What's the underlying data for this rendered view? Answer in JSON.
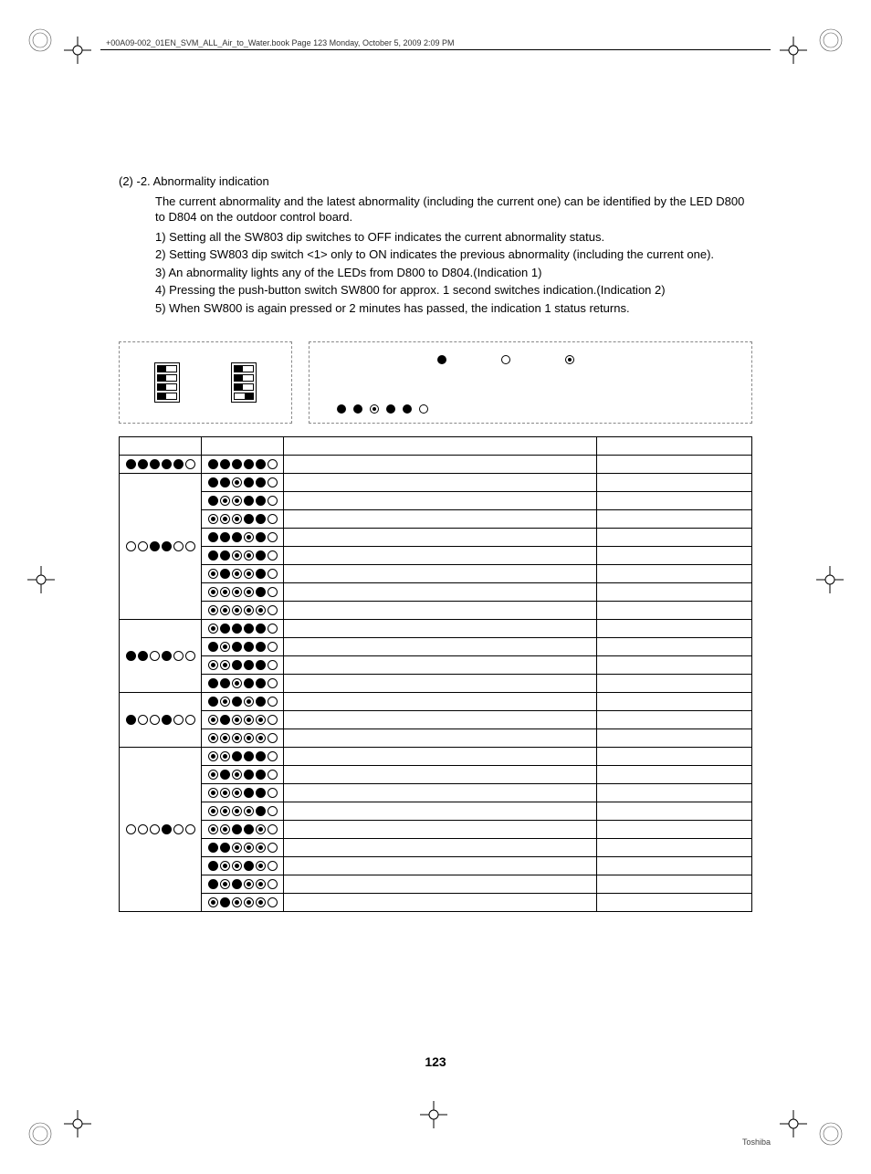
{
  "header_text": "+00A09-002_01EN_SVM_ALL_Air_to_Water.book  Page 123  Monday, October 5, 2009  2:09 PM",
  "section_heading": "(2) -2. Abnormality indication",
  "intro_para": "The current abnormality and the latest abnormality (including the current one) can be identified by the LED D800 to D804 on the outdoor control board.",
  "list_items": [
    "1)  Setting all the SW803 dip switches to OFF indicates the current abnormality status.",
    "2)  Setting SW803 dip switch <1> only to ON indicates the previous abnormality (including the current one).",
    "3)  An abnormality lights any of the LEDs from D800 to D804.(Indication 1)",
    "4)  Pressing the push-button switch SW800 for approx. 1 second switches indication.(Indication 2)",
    "5)  When SW800 is again pressed or 2 minutes has passed, the indication 1 status returns."
  ],
  "dip_left": [
    "left",
    "left",
    "left",
    "left"
  ],
  "dip_right": [
    "left",
    "left",
    "left",
    "right"
  ],
  "legend": {
    "on": "filled",
    "off": "empty",
    "flash": "flash"
  },
  "legend_example": [
    "filled",
    "filled",
    "flash",
    "filled",
    "filled",
    "empty"
  ],
  "table_header_row": [
    "",
    "",
    "",
    ""
  ],
  "groups": [
    {
      "ind1": [
        "filled",
        "filled",
        "filled",
        "filled",
        "filled",
        "empty"
      ],
      "rows": [
        [
          "filled",
          "filled",
          "filled",
          "filled",
          "filled",
          "empty"
        ]
      ]
    },
    {
      "ind1": [
        "empty",
        "empty",
        "filled",
        "filled",
        "empty",
        "empty"
      ],
      "rows": [
        [
          "filled",
          "filled",
          "flash",
          "filled",
          "filled",
          "empty"
        ],
        [
          "filled",
          "flash",
          "flash",
          "filled",
          "filled",
          "empty"
        ],
        [
          "flash",
          "flash",
          "flash",
          "filled",
          "filled",
          "empty"
        ],
        [
          "filled",
          "filled",
          "filled",
          "flash",
          "filled",
          "empty"
        ],
        [
          "filled",
          "filled",
          "flash",
          "flash",
          "filled",
          "empty"
        ],
        [
          "flash",
          "filled",
          "flash",
          "flash",
          "filled",
          "empty"
        ],
        [
          "flash",
          "flash",
          "flash",
          "flash",
          "filled",
          "empty"
        ],
        [
          "flash",
          "flash",
          "flash",
          "flash",
          "flash",
          "empty"
        ]
      ]
    },
    {
      "ind1": [
        "filled",
        "filled",
        "empty",
        "filled",
        "empty",
        "empty"
      ],
      "rows": [
        [
          "flash",
          "filled",
          "filled",
          "filled",
          "filled",
          "empty"
        ],
        [
          "filled",
          "flash",
          "filled",
          "filled",
          "filled",
          "empty"
        ],
        [
          "flash",
          "flash",
          "filled",
          "filled",
          "filled",
          "empty"
        ],
        [
          "filled",
          "filled",
          "flash",
          "filled",
          "filled",
          "empty"
        ]
      ]
    },
    {
      "ind1": [
        "filled",
        "empty",
        "empty",
        "filled",
        "empty",
        "empty"
      ],
      "rows": [
        [
          "filled",
          "flash",
          "filled",
          "flash",
          "filled",
          "empty"
        ],
        [
          "flash",
          "filled",
          "flash",
          "flash",
          "flash",
          "empty"
        ],
        [
          "flash",
          "flash",
          "flash",
          "flash",
          "flash",
          "empty"
        ]
      ]
    },
    {
      "ind1": [
        "empty",
        "empty",
        "empty",
        "filled",
        "empty",
        "empty"
      ],
      "rows": [
        [
          "flash",
          "flash",
          "filled",
          "filled",
          "filled",
          "empty"
        ],
        [
          "flash",
          "filled",
          "flash",
          "filled",
          "filled",
          "empty"
        ],
        [
          "flash",
          "flash",
          "flash",
          "filled",
          "filled",
          "empty"
        ],
        [
          "flash",
          "flash",
          "flash",
          "flash",
          "filled",
          "empty"
        ],
        [
          "flash",
          "flash",
          "filled",
          "filled",
          "flash",
          "empty"
        ],
        [
          "filled",
          "filled",
          "flash",
          "flash",
          "flash",
          "empty"
        ],
        [
          "filled",
          "flash",
          "flash",
          "filled",
          "flash",
          "empty"
        ],
        [
          "filled",
          "flash",
          "filled",
          "flash",
          "flash",
          "empty"
        ],
        [
          "flash",
          "filled",
          "flash",
          "flash",
          "flash",
          "empty"
        ]
      ]
    }
  ],
  "page_number": "123",
  "footer_brand": "Toshiba"
}
